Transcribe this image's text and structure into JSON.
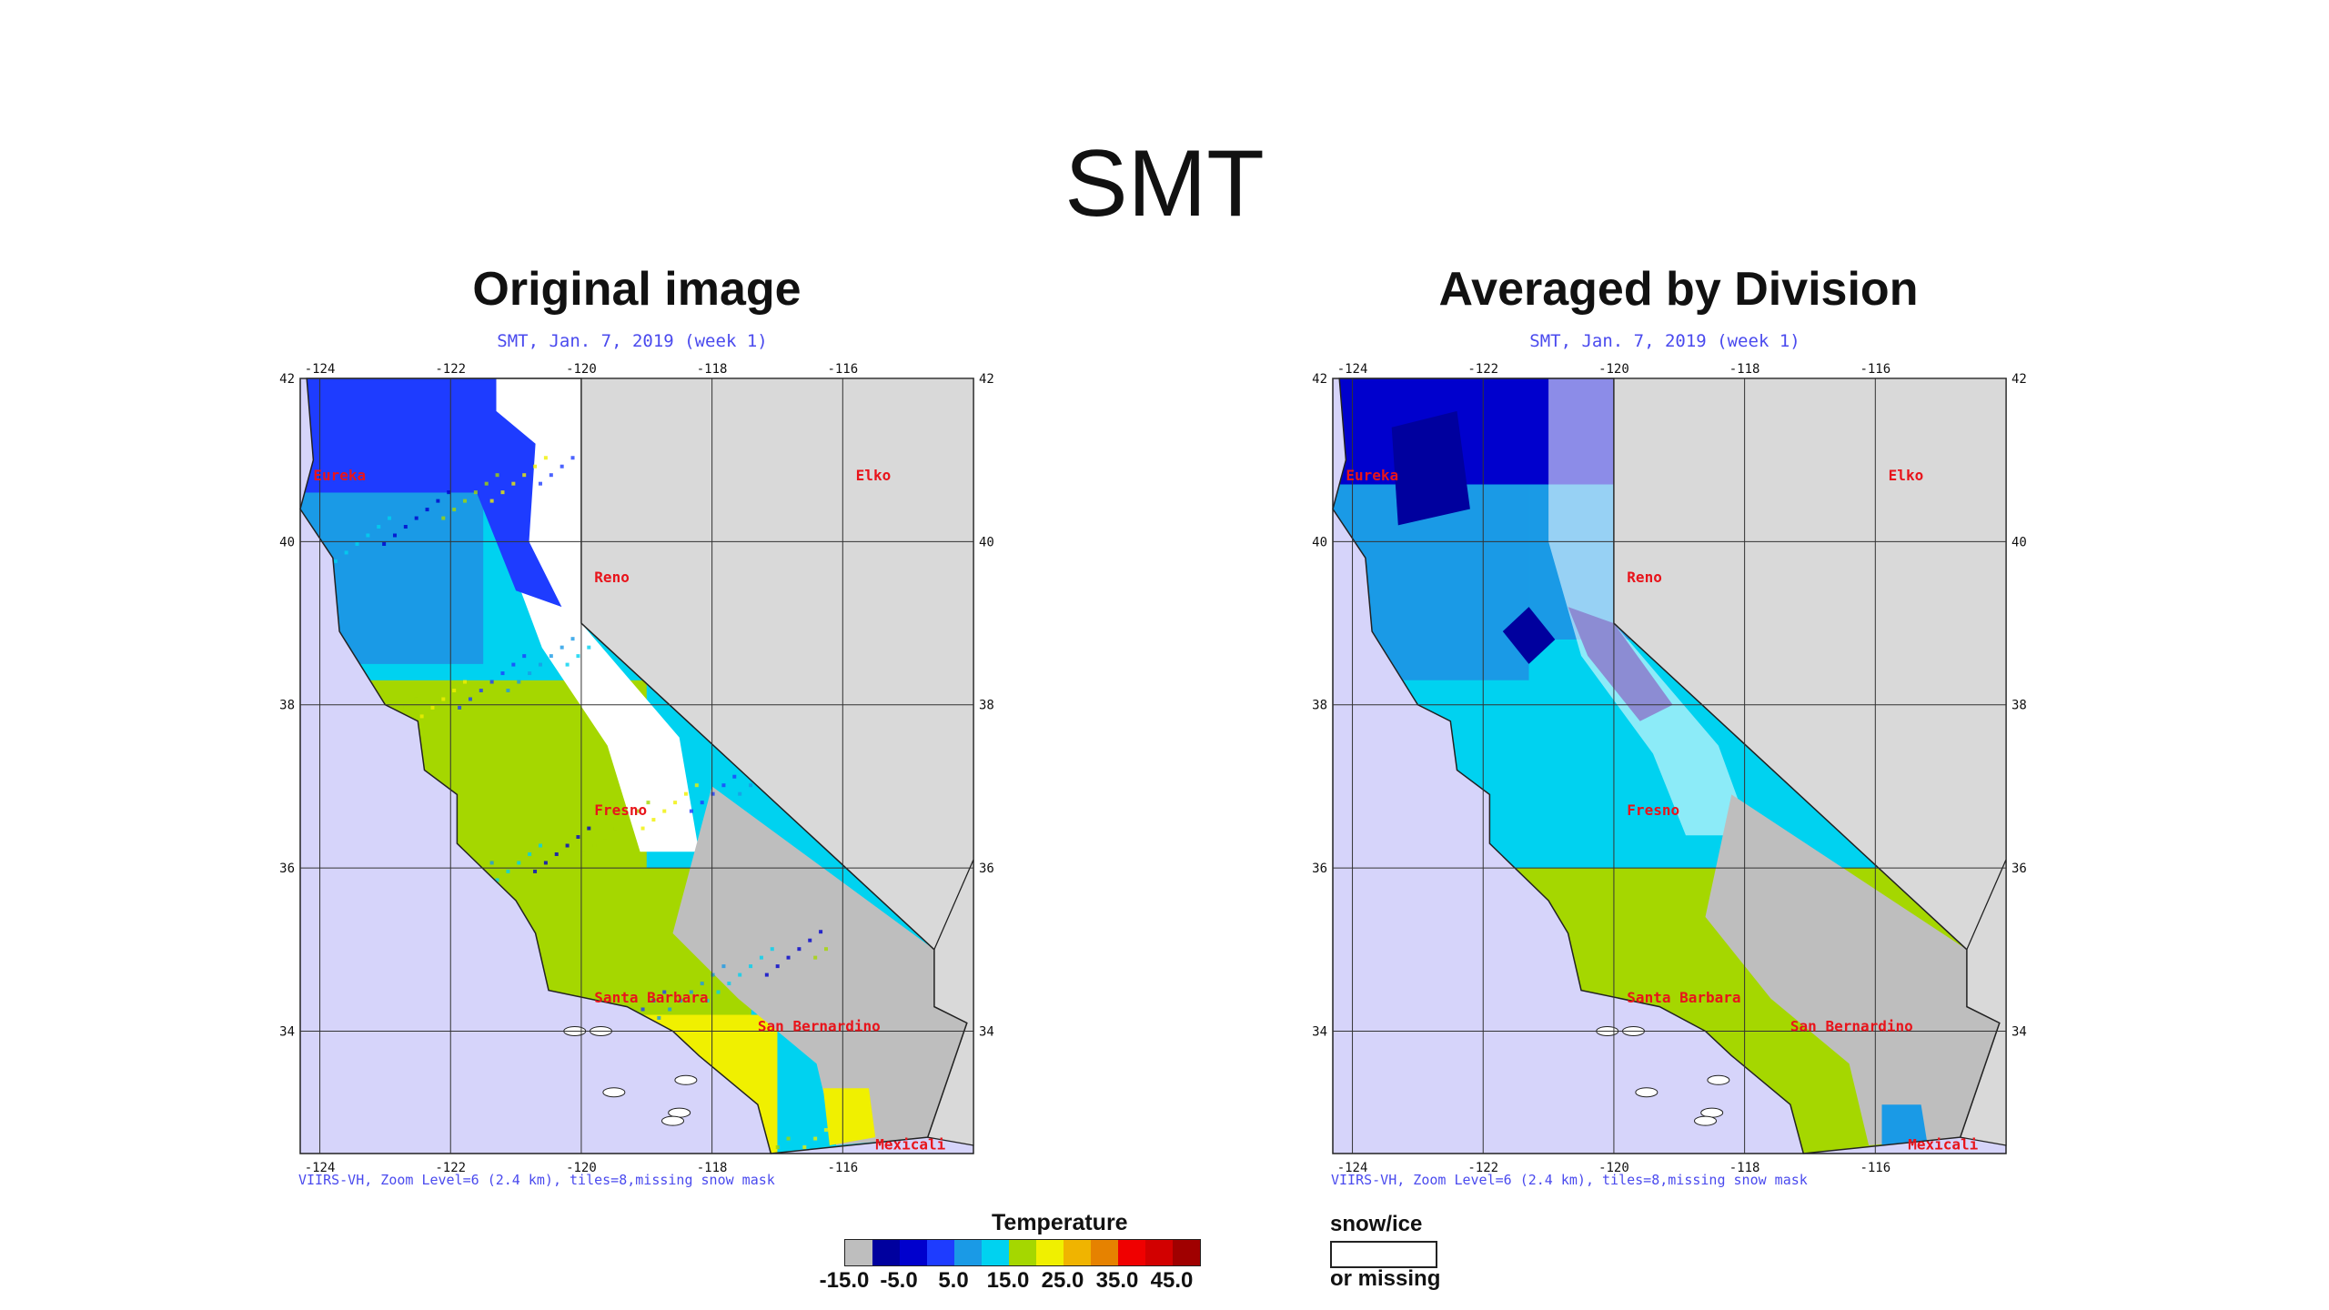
{
  "slide": {
    "title": "SMT"
  },
  "panels": [
    {
      "heading": "Original image",
      "caption": "SMT, Jan. 7, 2019 (week 1)",
      "footer": "VIIRS-VH, Zoom Level=6 (2.4 km), tiles=8,missing snow mask"
    },
    {
      "heading": "Averaged by Division",
      "caption": "SMT, Jan. 7, 2019 (week 1)",
      "footer": "VIIRS-VH, Zoom Level=6 (2.4 km), tiles=8,missing snow mask"
    }
  ],
  "map": {
    "lon_ticks": [
      "-124",
      "-122",
      "-120",
      "-118",
      "-116"
    ],
    "lat_ticks": [
      "42",
      "40",
      "38",
      "36",
      "34"
    ],
    "cities": [
      "Eureka",
      "Elko",
      "Reno",
      "Fresno",
      "Santa Barbara",
      "San Bernardino",
      "Mexicali"
    ]
  },
  "legend": {
    "title": "Temperature",
    "tick_labels": [
      "-15.0",
      "-5.0",
      "5.0",
      "15.0",
      "25.0",
      "35.0",
      "45.0"
    ],
    "colors": [
      "#bebebe",
      "#00009e",
      "#0000cd",
      "#1e3cff",
      "#1a9ae6",
      "#00d2f0",
      "#a5d700",
      "#f0f000",
      "#f0b400",
      "#e68200",
      "#f00000",
      "#d20000",
      "#a00000"
    ],
    "snow_label_top": "snow/ice",
    "snow_label_bottom": "or missing"
  },
  "colors": {
    "ocean": "#d6d4fa",
    "land_missing": "#d9d9d9",
    "border": "#222222",
    "city_text": "#e8141b",
    "caption_text": "#4a4aee"
  }
}
